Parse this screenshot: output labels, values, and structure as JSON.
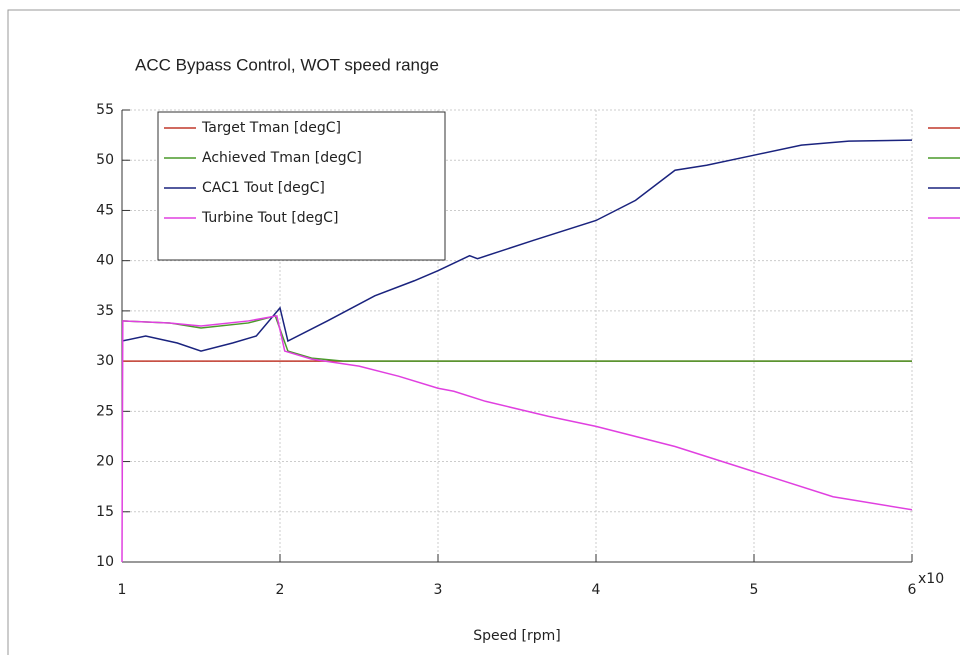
{
  "chart_data": {
    "type": "line",
    "title": "ACC Bypass Control, WOT speed range",
    "xlabel": "Speed [rpm]",
    "x_multiplier": "x10",
    "xlim": [
      1,
      6
    ],
    "xticks": [
      1,
      2,
      3,
      4,
      5,
      6
    ],
    "ylim": [
      10,
      55
    ],
    "yticks": [
      10,
      15,
      20,
      25,
      30,
      35,
      40,
      45,
      50,
      55
    ],
    "grid": true,
    "legend": "upper left",
    "series": [
      {
        "name": "Target Tman [degC]",
        "color": "#c0392b",
        "x": [
          1,
          6
        ],
        "values": [
          30,
          30
        ]
      },
      {
        "name": "Achieved Tman [degC]",
        "color": "#4a9a2a",
        "x": [
          1,
          1.3,
          1.5,
          1.8,
          1.97,
          2.05,
          2.2,
          2.4,
          6
        ],
        "values": [
          34,
          33.8,
          33.3,
          33.8,
          34.5,
          31,
          30.3,
          30,
          30
        ]
      },
      {
        "name": "CAC1 Tout [degC]",
        "color": "#1a237e",
        "x": [
          1,
          1.15,
          1.35,
          1.5,
          1.7,
          1.85,
          2.0,
          2.05,
          2.3,
          2.6,
          2.85,
          3.0,
          3.2,
          3.25,
          3.6,
          4.0,
          4.25,
          4.5,
          4.7,
          5.0,
          5.3,
          5.6,
          6
        ],
        "values": [
          32,
          32.5,
          31.8,
          31,
          31.8,
          32.5,
          35.3,
          32,
          34,
          36.5,
          38,
          39,
          40.5,
          40.2,
          42,
          44,
          46,
          49,
          49.5,
          50.5,
          51.5,
          51.9,
          52
        ]
      },
      {
        "name": "Turbine Tout [degC]",
        "color": "#e040e0",
        "x": [
          1,
          1.005,
          1.3,
          1.5,
          1.8,
          1.98,
          2.03,
          2.2,
          2.5,
          2.75,
          3.0,
          3.1,
          3.3,
          3.7,
          4.0,
          4.5,
          5.0,
          5.5,
          6
        ],
        "values": [
          10,
          34,
          33.8,
          33.5,
          34,
          34.5,
          31,
          30.2,
          29.5,
          28.5,
          27.3,
          27,
          26,
          24.5,
          23.5,
          21.5,
          19,
          16.5,
          15.2
        ]
      }
    ]
  }
}
